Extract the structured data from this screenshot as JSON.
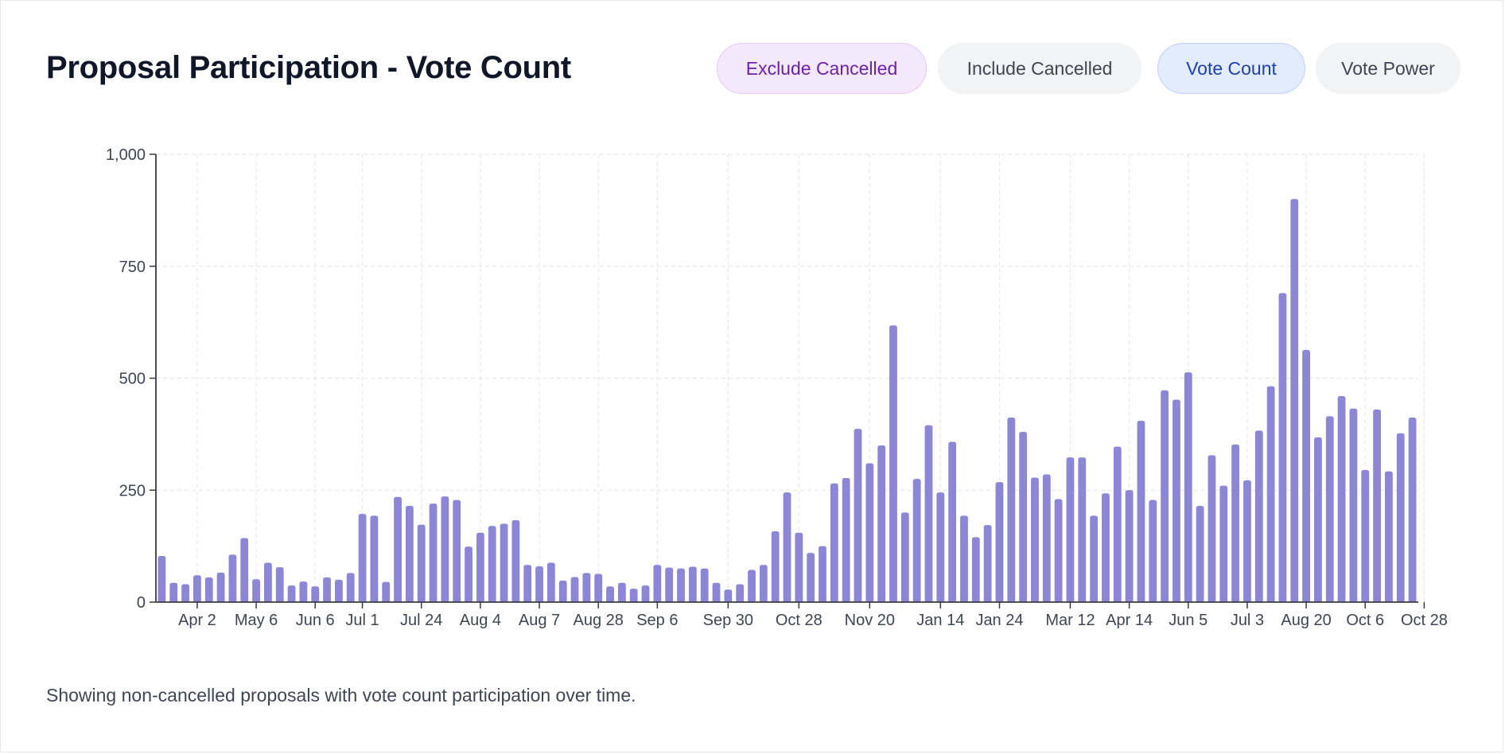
{
  "header": {
    "title": "Proposal Participation - Vote Count",
    "filters": [
      {
        "label": "Exclude Cancelled",
        "active": true
      },
      {
        "label": "Include Cancelled",
        "active": false
      }
    ],
    "metrics": [
      {
        "label": "Vote Count",
        "active": true
      },
      {
        "label": "Vote Power",
        "active": false
      }
    ]
  },
  "colors": {
    "bar": "#8b86d6",
    "grid": "#e8e8ec",
    "axis": "#3a3a40",
    "text": "#3f4552"
  },
  "chart_data": {
    "type": "bar",
    "ylim": [
      0,
      1000
    ],
    "yticks": [
      0,
      250,
      500,
      750,
      1000
    ],
    "ytick_labels": [
      "0",
      "250",
      "500",
      "750",
      "1,000"
    ],
    "grid": true,
    "xticks": [
      {
        "label": "Apr 2",
        "index": 3
      },
      {
        "label": "May 6",
        "index": 8
      },
      {
        "label": "Jun 6",
        "index": 13
      },
      {
        "label": "Jul 1",
        "index": 17
      },
      {
        "label": "Jul 24",
        "index": 22
      },
      {
        "label": "Aug 4",
        "index": 27
      },
      {
        "label": "Aug 7",
        "index": 32
      },
      {
        "label": "Aug 28",
        "index": 37
      },
      {
        "label": "Sep 6",
        "index": 42
      },
      {
        "label": "Sep 30",
        "index": 48
      },
      {
        "label": "Oct 28",
        "index": 54
      },
      {
        "label": "Nov 20",
        "index": 60
      },
      {
        "label": "Jan 14",
        "index": 66
      },
      {
        "label": "Jan 24",
        "index": 71
      },
      {
        "label": "Mar 12",
        "index": 77
      },
      {
        "label": "Apr 14",
        "index": 82
      },
      {
        "label": "Jun 5",
        "index": 87
      },
      {
        "label": "Jul 3",
        "index": 92
      },
      {
        "label": "Aug 20",
        "index": 97
      },
      {
        "label": "Oct 6",
        "index": 102
      },
      {
        "label": "Oct 28",
        "index": 107
      }
    ],
    "values": [
      103,
      43,
      40,
      60,
      55,
      66,
      106,
      143,
      51,
      88,
      78,
      37,
      46,
      35,
      55,
      50,
      65,
      197,
      193,
      45,
      235,
      215,
      173,
      220,
      236,
      228,
      124,
      155,
      170,
      175,
      183,
      83,
      80,
      88,
      48,
      56,
      65,
      63,
      35,
      43,
      30,
      37,
      83,
      77,
      75,
      79,
      75,
      43,
      28,
      40,
      72,
      83,
      158,
      245,
      155,
      110,
      125,
      265,
      277,
      387,
      310,
      350,
      618,
      200,
      275,
      395,
      245,
      358,
      193,
      145,
      172,
      268,
      412,
      380,
      278,
      285,
      230,
      323,
      323,
      193,
      243,
      347,
      250,
      405,
      228,
      473,
      452,
      513,
      215,
      328,
      260,
      352,
      272,
      383,
      482,
      690,
      900,
      563,
      368,
      415,
      460,
      432,
      295,
      430,
      292,
      377,
      412
    ]
  },
  "footer": {
    "caption": "Showing non-cancelled proposals with vote count participation over time."
  }
}
